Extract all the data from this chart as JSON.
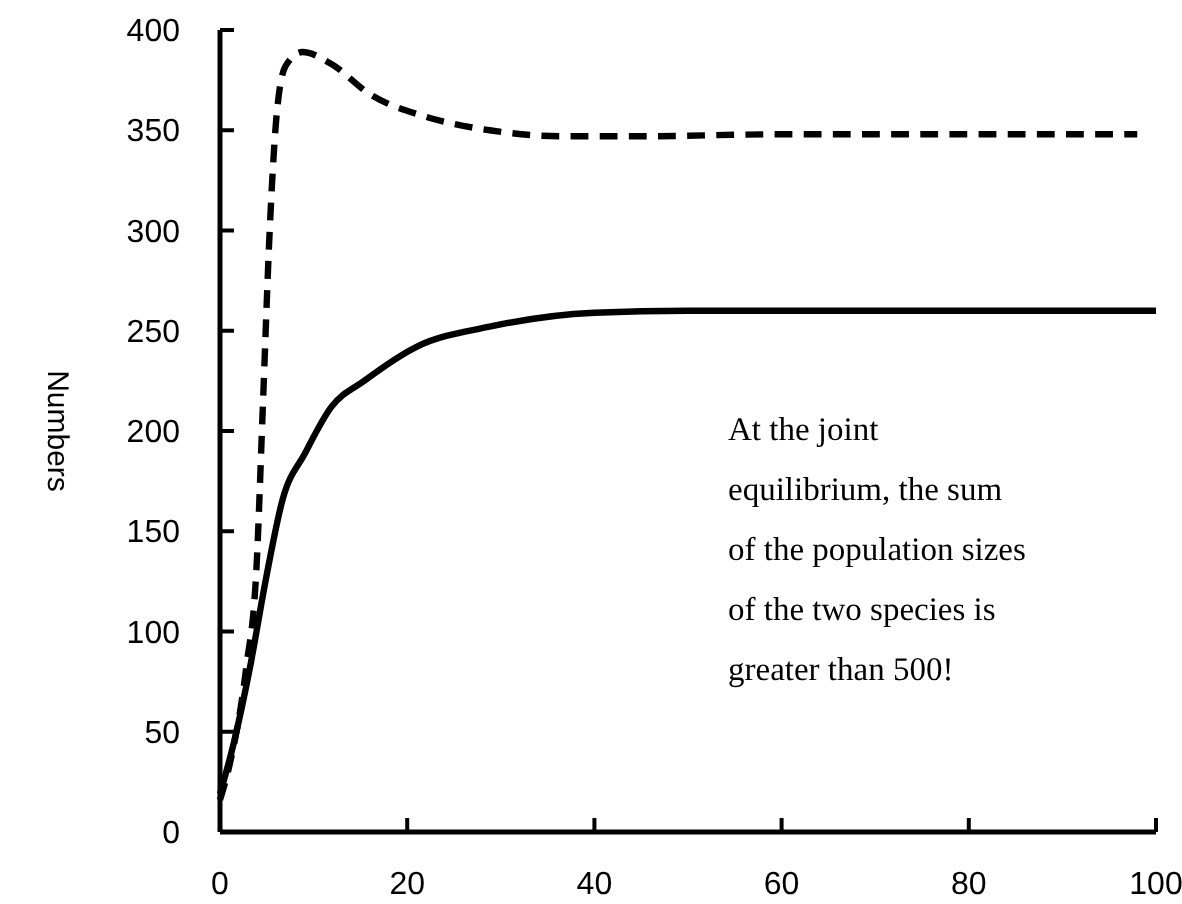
{
  "chart_data": {
    "type": "line",
    "ylabel": "Numbers",
    "xlim": [
      0,
      100
    ],
    "xticks": [
      0,
      20,
      40,
      60,
      80,
      100
    ],
    "ylim": [
      0,
      400
    ],
    "yticks": [
      0,
      50,
      100,
      150,
      200,
      250,
      300,
      350,
      400
    ],
    "series": [
      {
        "color": "#000000",
        "line_style": "dashed",
        "x": [
          0,
          1,
          2.8,
          3.9,
          4.6,
          5.3,
          6,
          7,
          8.8,
          11.9,
          16,
          21.8,
          28.8,
          36.5,
          45,
          60,
          80,
          98
        ],
        "values": [
          16,
          33,
          82,
          132,
          215,
          299,
          355,
          382,
          389,
          383,
          368,
          357,
          350,
          347,
          347,
          348,
          348,
          348
        ]
      },
      {
        "color": "#000000",
        "line_style": "solid",
        "x": [
          0,
          1.4,
          3.2,
          4.9,
          6.7,
          9.1,
          11.9,
          15.4,
          21,
          28.8,
          40,
          50,
          70,
          100
        ],
        "values": [
          19,
          43,
          82,
          126,
          166,
          189,
          212,
          225,
          242,
          252,
          259,
          260,
          260,
          260
        ]
      }
    ],
    "annotations": [
      "At the joint\nequilibrium, the sum\nof the population sizes\nof the two species is\ngreater than 500!"
    ]
  }
}
